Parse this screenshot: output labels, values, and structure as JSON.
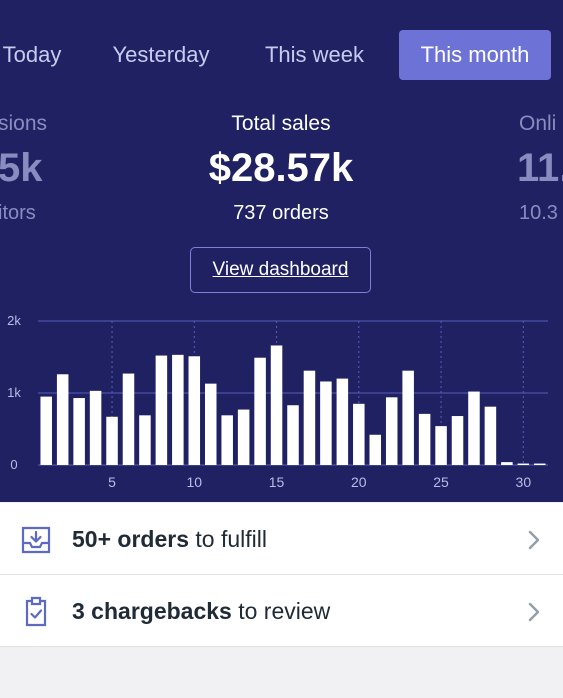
{
  "tabs": [
    {
      "label": "Today"
    },
    {
      "label": "Yesterday"
    },
    {
      "label": "This week"
    },
    {
      "label": "This month",
      "active": true
    }
  ],
  "stats": {
    "left": {
      "label": "sions",
      "value": "5k",
      "sub": "itors"
    },
    "center": {
      "label": "Total sales",
      "value": "$28.57k",
      "sub": "737 orders"
    },
    "right": {
      "label": "Onli",
      "value": "11.",
      "sub": "10.3"
    }
  },
  "dashboard_button": "View dashboard",
  "colors": {
    "background": "#1f2163",
    "active_tab": "#6d72d6",
    "bar": "#ffffff",
    "gridline": "#5a5dbd"
  },
  "chart_data": {
    "type": "bar",
    "x": [
      1,
      2,
      3,
      4,
      5,
      6,
      7,
      8,
      9,
      10,
      11,
      12,
      13,
      14,
      15,
      16,
      17,
      18,
      19,
      20,
      21,
      22,
      23,
      24,
      25,
      26,
      27,
      28,
      29,
      30,
      31
    ],
    "values": [
      950,
      1260,
      930,
      1030,
      670,
      1270,
      690,
      1520,
      1530,
      1510,
      1130,
      690,
      770,
      1490,
      1660,
      830,
      1310,
      1160,
      1200,
      850,
      420,
      940,
      1310,
      710,
      540,
      680,
      1020,
      810,
      40,
      20,
      20
    ],
    "xticks": [
      "5",
      "10",
      "15",
      "20",
      "25",
      "30"
    ],
    "xtick_values": [
      5,
      10,
      15,
      20,
      25,
      30
    ],
    "yticks": [
      "0",
      "1k",
      "2k"
    ],
    "ytick_values": [
      0,
      1000,
      2000
    ],
    "ylim": [
      0,
      2000
    ],
    "xlim": [
      0.5,
      31.5
    ],
    "grid": true
  },
  "tasks": [
    {
      "icon": "inbox-download-icon",
      "bold": "50+ orders",
      "rest": " to fulfill"
    },
    {
      "icon": "clipboard-check-icon",
      "bold": "3 chargebacks",
      "rest": " to review"
    }
  ]
}
